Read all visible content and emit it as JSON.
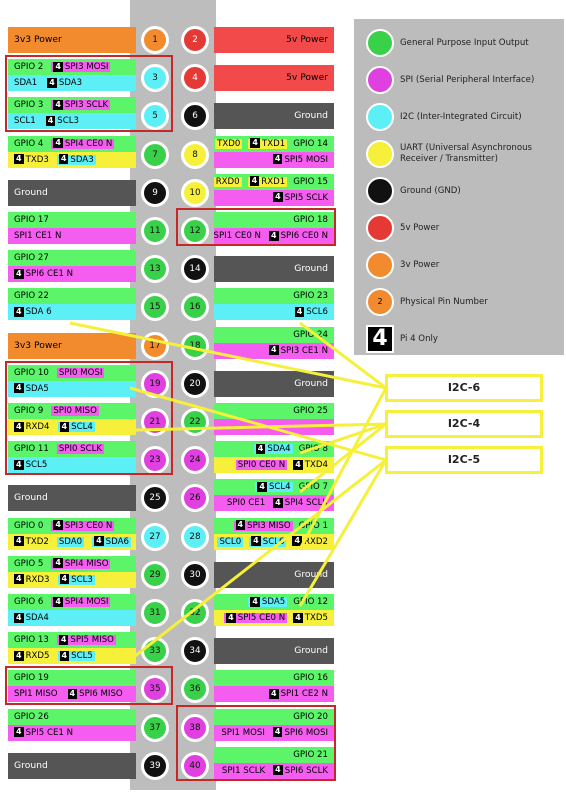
{
  "colors": {
    "gpio": "#5cf569",
    "spi": "#f55cf0",
    "i2c": "#5ceff5",
    "uart": "#f6f03b",
    "ground": "#555555",
    "power5": "#f24a4a",
    "power3": "#f28a2e",
    "physical": "#f28a2e",
    "header": "#bdbdbd",
    "highlight": "#c62828",
    "pi4only": "#000000"
  },
  "pins": [
    {
      "n": "1",
      "color": "#f28a2e",
      "label": "3v3 Power",
      "type": "power3"
    },
    {
      "n": "2",
      "color": "#e53935",
      "label": "5v Power",
      "type": "power5"
    },
    {
      "n": "3",
      "color": "#5ceff5",
      "label": "GPIO 2",
      "type": "gpio"
    },
    {
      "n": "4",
      "color": "#e53935",
      "label": "5v Power",
      "type": "power5"
    },
    {
      "n": "5",
      "color": "#5ceff5",
      "label": "GPIO 3",
      "type": "gpio"
    },
    {
      "n": "6",
      "color": "#111111",
      "label": "Ground",
      "type": "ground"
    },
    {
      "n": "7",
      "color": "#3ad14a",
      "label": "GPIO 4",
      "type": "gpio"
    },
    {
      "n": "8",
      "color": "#f6f03b",
      "label": "GPIO 14",
      "type": "gpio"
    },
    {
      "n": "9",
      "color": "#111111",
      "label": "Ground",
      "type": "ground"
    },
    {
      "n": "10",
      "color": "#f6f03b",
      "label": "GPIO 15",
      "type": "gpio"
    },
    {
      "n": "11",
      "color": "#3ad14a",
      "label": "GPIO 17",
      "type": "gpio"
    },
    {
      "n": "12",
      "color": "#3ad14a",
      "label": "GPIO 18",
      "type": "gpio"
    },
    {
      "n": "13",
      "color": "#3ad14a",
      "label": "GPIO 27",
      "type": "gpio"
    },
    {
      "n": "14",
      "color": "#111111",
      "label": "Ground",
      "type": "ground"
    },
    {
      "n": "15",
      "color": "#3ad14a",
      "label": "GPIO 22",
      "type": "gpio"
    },
    {
      "n": "16",
      "color": "#3ad14a",
      "label": "GPIO 23",
      "type": "gpio"
    },
    {
      "n": "17",
      "color": "#f28a2e",
      "label": "3v3 Power",
      "type": "power3"
    },
    {
      "n": "18",
      "color": "#3ad14a",
      "label": "GPIO 24",
      "type": "gpio"
    },
    {
      "n": "19",
      "color": "#e040e0",
      "label": "GPIO 10",
      "type": "gpio"
    },
    {
      "n": "20",
      "color": "#111111",
      "label": "Ground",
      "type": "ground"
    },
    {
      "n": "21",
      "color": "#e040e0",
      "label": "GPIO 9",
      "type": "gpio"
    },
    {
      "n": "22",
      "color": "#3ad14a",
      "label": "GPIO 25",
      "type": "gpio"
    },
    {
      "n": "23",
      "color": "#e040e0",
      "label": "GPIO 11",
      "type": "gpio"
    },
    {
      "n": "24",
      "color": "#e040e0",
      "label": "GPIO 8",
      "type": "gpio"
    },
    {
      "n": "25",
      "color": "#111111",
      "label": "Ground",
      "type": "ground"
    },
    {
      "n": "26",
      "color": "#e040e0",
      "label": "GPIO 7",
      "type": "gpio"
    },
    {
      "n": "27",
      "color": "#5ceff5",
      "label": "GPIO 0",
      "type": "gpio"
    },
    {
      "n": "28",
      "color": "#5ceff5",
      "label": "GPIO 1",
      "type": "gpio"
    },
    {
      "n": "29",
      "color": "#3ad14a",
      "label": "GPIO 5",
      "type": "gpio"
    },
    {
      "n": "30",
      "color": "#111111",
      "label": "Ground",
      "type": "ground"
    },
    {
      "n": "31",
      "color": "#3ad14a",
      "label": "GPIO 6",
      "type": "gpio"
    },
    {
      "n": "32",
      "color": "#3ad14a",
      "label": "GPIO 12",
      "type": "gpio"
    },
    {
      "n": "33",
      "color": "#3ad14a",
      "label": "GPIO 13",
      "type": "gpio"
    },
    {
      "n": "34",
      "color": "#111111",
      "label": "Ground",
      "type": "ground"
    },
    {
      "n": "35",
      "color": "#e040e0",
      "label": "GPIO 19",
      "type": "gpio"
    },
    {
      "n": "36",
      "color": "#3ad14a",
      "label": "GPIO 16",
      "type": "gpio"
    },
    {
      "n": "37",
      "color": "#3ad14a",
      "label": "GPIO 26",
      "type": "gpio"
    },
    {
      "n": "38",
      "color": "#e040e0",
      "label": "GPIO 20",
      "type": "gpio"
    },
    {
      "n": "39",
      "color": "#111111",
      "label": "Ground",
      "type": "ground"
    },
    {
      "n": "40",
      "color": "#e040e0",
      "label": "GPIO 21",
      "type": "gpio"
    }
  ],
  "left_rows": [
    {
      "full": {
        "text": "3v3 Power",
        "color": "#f28a2e"
      }
    },
    {
      "top": {
        "text": "GPIO 2",
        "color": "#5cf569",
        "parts": [
          {
            "text": "SPI3 MOSI",
            "four": true,
            "color": "#f55cf0"
          }
        ]
      },
      "bottom": {
        "text": "SDA1",
        "color": "#5ceff5",
        "parts": [
          {
            "text": "SDA3",
            "four": true,
            "color": "#5ceff5"
          }
        ]
      }
    },
    {
      "top": {
        "text": "GPIO 3",
        "color": "#5cf569",
        "parts": [
          {
            "text": "SPI3 SCLK",
            "four": true,
            "color": "#f55cf0"
          }
        ]
      },
      "bottom": {
        "text": "SCL1",
        "color": "#5ceff5",
        "parts": [
          {
            "text": "SCL3",
            "four": true,
            "color": "#5ceff5"
          }
        ]
      }
    },
    {
      "top": {
        "text": "GPIO 4",
        "color": "#5cf569",
        "parts": [
          {
            "text": "SPI4 CE0 N",
            "four": true,
            "color": "#f55cf0"
          }
        ]
      },
      "bottom": {
        "text": "TXD3",
        "four": true,
        "color": "#f6f03b",
        "parts": [
          {
            "text": "SDA3",
            "four": true,
            "color": "#5ceff5"
          }
        ]
      }
    },
    {
      "full": {
        "text": "Ground",
        "color": "#555555",
        "textcolor": "#ffffff"
      }
    },
    {
      "top": {
        "text": "GPIO 17",
        "color": "#5cf569"
      },
      "bottom": {
        "text": "SPI1 CE1 N",
        "color": "#f55cf0"
      }
    },
    {
      "top": {
        "text": "GPIO 27",
        "color": "#5cf569"
      },
      "bottom": {
        "text": "SPI6 CE1 N",
        "four": true,
        "color": "#f55cf0"
      }
    },
    {
      "top": {
        "text": "GPIO 22",
        "color": "#5cf569"
      },
      "bottom": {
        "text": "SDA 6",
        "four": true,
        "color": "#5ceff5"
      }
    },
    {
      "full": {
        "text": "3v3 Power",
        "color": "#f28a2e"
      }
    },
    {
      "top": {
        "text": "GPIO 10",
        "color": "#5cf569",
        "parts": [
          {
            "text": "SPI0 MOSI",
            "color": "#f55cf0"
          }
        ]
      },
      "bottom": {
        "text": "SDA5",
        "four": true,
        "color": "#5ceff5"
      }
    },
    {
      "top": {
        "text": "GPIO 9",
        "color": "#5cf569",
        "parts": [
          {
            "text": "SPI0 MISO",
            "color": "#f55cf0"
          }
        ]
      },
      "bottom": {
        "text": "RXD4",
        "four": true,
        "color": "#f6f03b",
        "parts": [
          {
            "text": "SCL4",
            "four": true,
            "color": "#5ceff5"
          }
        ]
      }
    },
    {
      "top": {
        "text": "GPIO 11",
        "color": "#5cf569",
        "parts": [
          {
            "text": "SPI0 SCLK",
            "color": "#f55cf0"
          }
        ]
      },
      "bottom": {
        "text": "SCL5",
        "four": true,
        "color": "#5ceff5"
      }
    },
    {
      "full": {
        "text": "Ground",
        "color": "#555555",
        "textcolor": "#ffffff"
      }
    },
    {
      "top": {
        "text": "GPIO 0",
        "color": "#5cf569",
        "parts": [
          {
            "text": "SPI3 CE0 N",
            "four": true,
            "color": "#f55cf0"
          }
        ]
      },
      "bottom": {
        "text": "TXD2",
        "four": true,
        "color": "#f6f03b",
        "parts": [
          {
            "text": "SDA0",
            "color": "#5ceff5"
          },
          {
            "text": "SDA6",
            "four": true,
            "color": "#5ceff5"
          }
        ]
      }
    },
    {
      "top": {
        "text": "GPIO 5",
        "color": "#5cf569",
        "parts": [
          {
            "text": "SPI4 MISO",
            "four": true,
            "color": "#f55cf0"
          }
        ]
      },
      "bottom": {
        "text": "RXD3",
        "four": true,
        "color": "#f6f03b",
        "parts": [
          {
            "text": "SCL3",
            "four": true,
            "color": "#5ceff5"
          }
        ]
      }
    },
    {
      "top": {
        "text": "GPIO 6",
        "color": "#5cf569",
        "parts": [
          {
            "text": "SPI4 MOSI",
            "four": true,
            "color": "#f55cf0"
          }
        ]
      },
      "bottom": {
        "text": "SDA4",
        "four": true,
        "color": "#5ceff5"
      }
    },
    {
      "top": {
        "text": "GPIO 13",
        "color": "#5cf569",
        "parts": [
          {
            "text": "SPI5 MISO",
            "four": true,
            "color": "#f55cf0"
          }
        ]
      },
      "bottom": {
        "text": "RXD5",
        "four": true,
        "color": "#f6f03b",
        "parts": [
          {
            "text": "SCL5",
            "four": true,
            "color": "#5ceff5"
          }
        ]
      }
    },
    {
      "top": {
        "text": "GPIO 19",
        "color": "#5cf569"
      },
      "bottom": {
        "text": "SPI1 MISO",
        "color": "#f55cf0",
        "parts": [
          {
            "text": "SPI6 MISO",
            "four": true,
            "color": "#f55cf0"
          }
        ]
      }
    },
    {
      "top": {
        "text": "GPIO 26",
        "color": "#5cf569"
      },
      "bottom": {
        "text": "SPI5 CE1 N",
        "four": true,
        "color": "#f55cf0"
      }
    },
    {
      "full": {
        "text": "Ground",
        "color": "#555555",
        "textcolor": "#ffffff"
      }
    }
  ],
  "right_rows": [
    {
      "full": {
        "text": "5v Power",
        "color": "#f24a4a"
      }
    },
    {
      "full": {
        "text": "5v Power",
        "color": "#f24a4a"
      }
    },
    {
      "full": {
        "text": "Ground",
        "color": "#555555",
        "textcolor": "#ffffff"
      }
    },
    {
      "top": {
        "text": "GPIO 14",
        "color": "#5cf569",
        "pre": [
          {
            "text": "TXD0",
            "color": "#f6f03b"
          },
          {
            "text": "TXD1",
            "four": true,
            "color": "#f6f03b"
          }
        ]
      },
      "bottom": {
        "text": "SPI5 MOSI",
        "four": true,
        "color": "#f55cf0"
      }
    },
    {
      "top": {
        "text": "GPIO 15",
        "color": "#5cf569",
        "pre": [
          {
            "text": "RXD0",
            "color": "#f6f03b"
          },
          {
            "text": "RXD1",
            "four": true,
            "color": "#f6f03b"
          }
        ]
      },
      "bottom": {
        "text": "SPI5 SCLK",
        "four": true,
        "color": "#f55cf0"
      }
    },
    {
      "top": {
        "text": "GPIO 18",
        "color": "#5cf569"
      },
      "bottom": {
        "text": "SPI6 CE0 N",
        "four": true,
        "color": "#f55cf0",
        "pre": [
          {
            "text": "SPI1 CE0 N",
            "color": "#f55cf0"
          }
        ]
      }
    },
    {
      "full": {
        "text": "Ground",
        "color": "#555555",
        "textcolor": "#ffffff"
      }
    },
    {
      "top": {
        "text": "GPIO 23",
        "color": "#5cf569"
      },
      "bottom": {
        "text": "SCL6",
        "four": true,
        "color": "#5ceff5"
      }
    },
    {
      "top": {
        "text": "GPIO 24",
        "color": "#5cf569"
      },
      "bottom": {
        "text": "SPI3 CE1 N",
        "four": true,
        "color": "#f55cf0"
      }
    },
    {
      "full": {
        "text": "Ground",
        "color": "#555555",
        "textcolor": "#ffffff"
      }
    },
    {
      "top": {
        "text": "GPIO 25",
        "color": "#5cf569"
      },
      "bottom": {
        "text": "",
        "color": "#f55cf0"
      }
    },
    {
      "top": {
        "text": "GPIO 8",
        "color": "#5cf569",
        "pre": [
          {
            "text": "SDA4",
            "four": true,
            "color": "#5ceff5"
          }
        ]
      },
      "bottom": {
        "text": "TXD4",
        "four": true,
        "color": "#f6f03b",
        "pre": [
          {
            "text": "SPI0 CE0 N",
            "color": "#f55cf0"
          }
        ]
      }
    },
    {
      "top": {
        "text": "GPIO 7",
        "color": "#5cf569",
        "pre": [
          {
            "text": "SCL4",
            "four": true,
            "color": "#5ceff5"
          }
        ]
      },
      "bottom": {
        "text": "SPI4 SCLK",
        "four": true,
        "color": "#f55cf0",
        "pre": [
          {
            "text": "SPI0 CE1",
            "color": "#f55cf0"
          }
        ]
      }
    },
    {
      "top": {
        "text": "GPIO 1",
        "color": "#5cf569",
        "pre": [
          {
            "text": "SPI3 MISO",
            "four": true,
            "color": "#f55cf0"
          }
        ]
      },
      "bottom": {
        "text": "RXD2",
        "four": true,
        "color": "#f6f03b",
        "pre": [
          {
            "text": "SCL0",
            "color": "#5ceff5"
          },
          {
            "text": "SCL6",
            "four": true,
            "color": "#5ceff5"
          }
        ]
      }
    },
    {
      "full": {
        "text": "Ground",
        "color": "#555555",
        "textcolor": "#ffffff"
      }
    },
    {
      "top": {
        "text": "GPIO 12",
        "color": "#5cf569",
        "pre": [
          {
            "text": "SDA5",
            "four": true,
            "color": "#5ceff5"
          }
        ]
      },
      "bottom": {
        "text": "TXD5",
        "four": true,
        "color": "#f6f03b",
        "pre": [
          {
            "text": "SPI5 CE0 N",
            "four": true,
            "color": "#f55cf0"
          }
        ]
      }
    },
    {
      "full": {
        "text": "Ground",
        "color": "#555555",
        "textcolor": "#ffffff"
      }
    },
    {
      "top": {
        "text": "GPIO 16",
        "color": "#5cf569"
      },
      "bottom": {
        "text": "SPI1 CE2 N",
        "four": true,
        "color": "#f55cf0"
      }
    },
    {
      "top": {
        "text": "GPIO 20",
        "color": "#5cf569"
      },
      "bottom": {
        "text": "SPI6 MOSI",
        "four": true,
        "color": "#f55cf0",
        "pre": [
          {
            "text": "SPI1 MOSI",
            "color": "#f55cf0"
          }
        ]
      }
    },
    {
      "top": {
        "text": "GPIO 21",
        "color": "#5cf569"
      },
      "bottom": {
        "text": "SPI6 SCLK",
        "four": true,
        "color": "#f55cf0",
        "pre": [
          {
            "text": "SPI1 SCLK",
            "color": "#f55cf0"
          }
        ]
      }
    }
  ],
  "legend": [
    {
      "label": "General Purpose Input Output",
      "color": "#3ad14a"
    },
    {
      "label": "SPI (Serial Peripheral Interface)",
      "color": "#e040e0"
    },
    {
      "label": "I2C (Inter-Integrated Circuit)",
      "color": "#5ceff5"
    },
    {
      "label": "UART (Universal Asynchronous Receiver / Transmitter)",
      "color": "#f6f03b"
    },
    {
      "label": "Ground (GND)",
      "color": "#111111"
    },
    {
      "label": "5v Power",
      "color": "#e53935"
    },
    {
      "label": "3v Power",
      "color": "#f28a2e"
    },
    {
      "label": "Physical Pin Number",
      "color": "#f28a2e",
      "num": "2"
    },
    {
      "label": "Pi 4 Only",
      "four": "4"
    }
  ],
  "buses": [
    {
      "label": "I2C-6"
    },
    {
      "label": "I2C-4"
    },
    {
      "label": "I2C-5"
    }
  ]
}
